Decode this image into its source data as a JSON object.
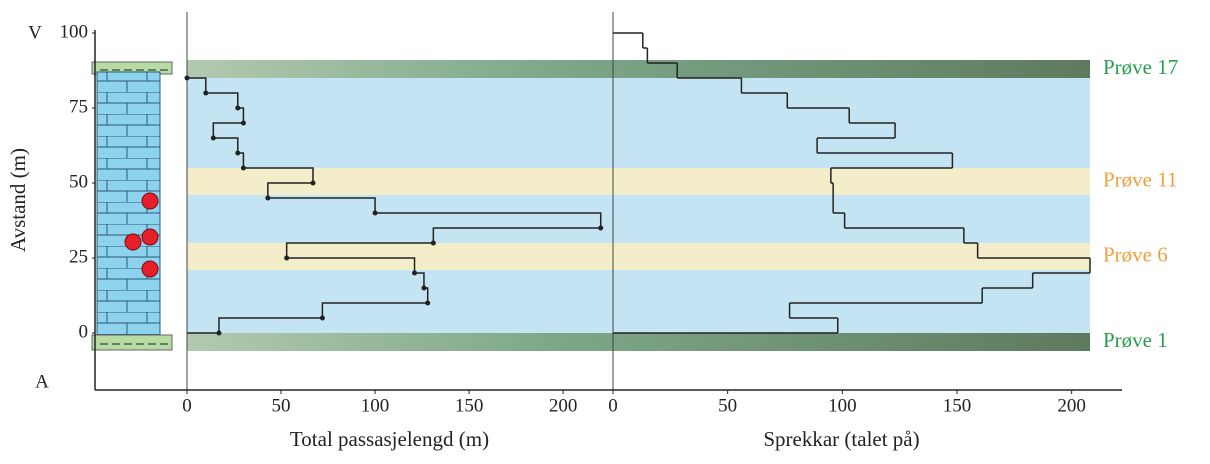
{
  "shared_axis": {
    "label": "Avstand (m)",
    "top_label": "V",
    "bottom_label": "A",
    "ylim": [
      -19,
      101
    ],
    "yticks": [
      0,
      25,
      50,
      75,
      100
    ]
  },
  "bands": [
    {
      "label": "Prøve 17",
      "from": 85,
      "to": 91,
      "kind": "green"
    },
    {
      "label": "Prøve 11",
      "from": 46,
      "to": 55,
      "kind": "sand"
    },
    {
      "label": "Prøve 6",
      "from": 21,
      "to": 30,
      "kind": "sand"
    },
    {
      "label": "Prøve 1",
      "from": -6,
      "to": 0,
      "kind": "green"
    }
  ],
  "chart_data": [
    {
      "type": "step-dots",
      "xlabel": "Total passasjelengd (m)",
      "xlim": [
        0,
        226
      ],
      "xticks": [
        0,
        50,
        100,
        150,
        200
      ],
      "color": "#222222",
      "depths": [
        85,
        80,
        75,
        70,
        65,
        60,
        55,
        50,
        45,
        40,
        35,
        30,
        25,
        20,
        15,
        10,
        5,
        0
      ],
      "values": [
        0,
        10,
        27,
        30,
        14,
        27,
        30,
        67,
        43,
        100,
        220,
        131,
        53,
        121,
        126,
        128,
        72,
        17
      ]
    },
    {
      "type": "step-bins",
      "xlabel": "Sprekkar (talet på)",
      "xlim": [
        0,
        208
      ],
      "xticks": [
        0,
        50,
        100,
        150,
        200
      ],
      "color": "#222222",
      "edges": [
        100,
        95,
        90,
        85,
        80,
        75,
        70,
        65,
        60,
        55,
        50,
        45,
        40,
        35,
        30,
        25,
        20,
        15,
        10,
        5,
        0
      ],
      "values": [
        13,
        15,
        28,
        56,
        76,
        103,
        123,
        89,
        148,
        95,
        96,
        96,
        101,
        153,
        159,
        208,
        183,
        161,
        77,
        98
      ]
    }
  ]
}
